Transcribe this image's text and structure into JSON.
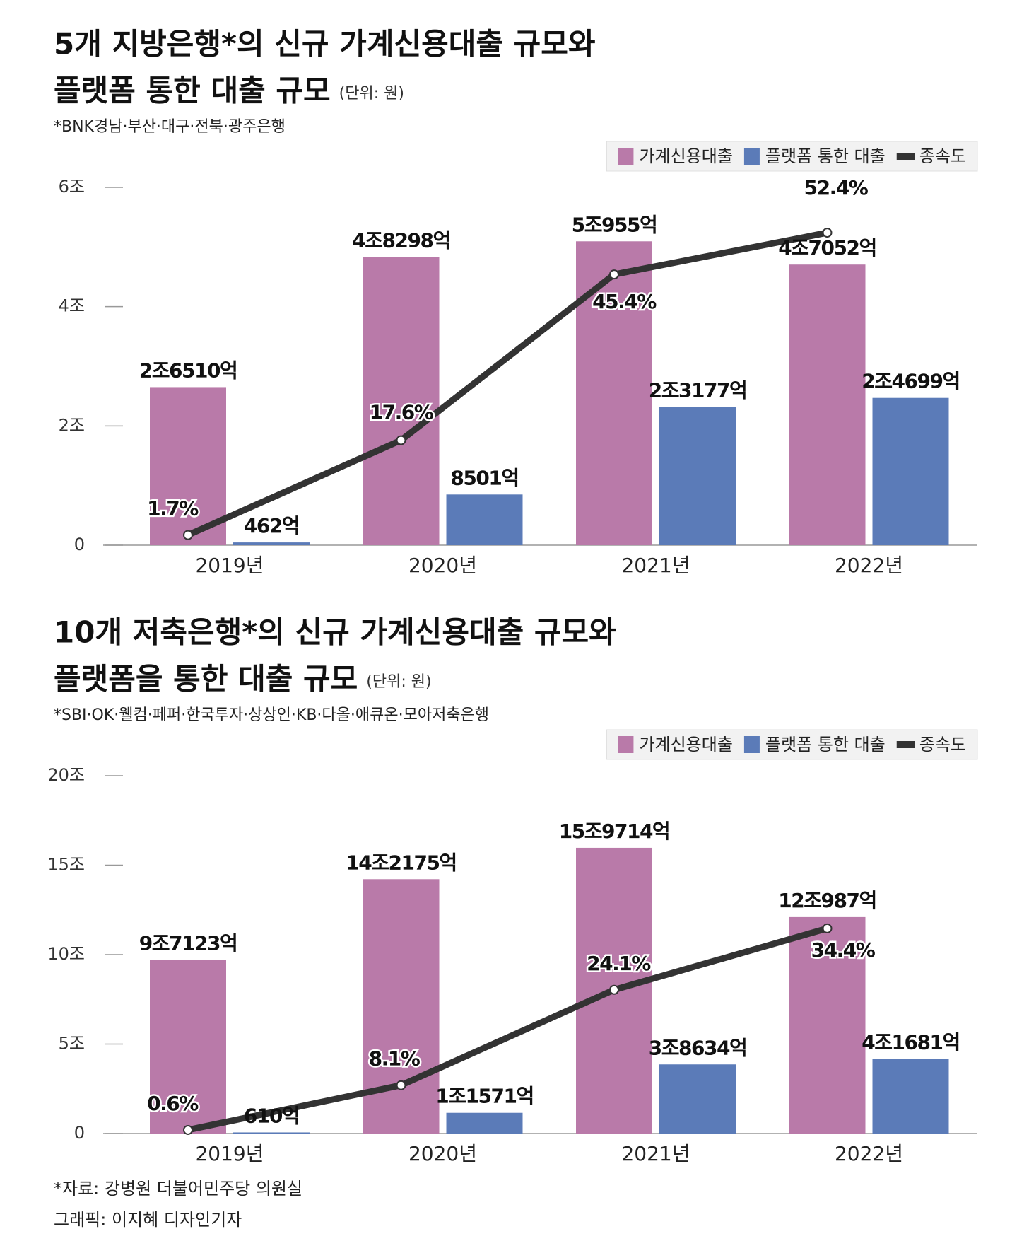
{
  "chart_data": [
    {
      "type": "bar",
      "title": [
        "5개 지방은행*의 신규 가계신용대출 규모와",
        "플랫폼 통한 대출 규모"
      ],
      "unit": "(단위: 원)",
      "note": "*BNK경남·부산·대구·전북·광주은행",
      "categories": [
        "2019년",
        "2020년",
        "2021년",
        "2022년"
      ],
      "ylim": [
        0,
        6
      ],
      "yticks": [
        0,
        {
          "value": 2,
          "label": "2조"
        },
        {
          "value": 4,
          "label": "4조"
        },
        {
          "value": 6,
          "label": "6조"
        }
      ],
      "y2lim": [
        0,
        60
      ],
      "legend": "top-right",
      "series": [
        {
          "name": "가계신용대출",
          "type": "bar",
          "color": "#b97aa9",
          "values": [
            2.651,
            4.8298,
            5.0955,
            4.7052
          ],
          "value_labels": [
            "2조6510억",
            "4조8298억",
            "5조955억",
            "4조7052억"
          ]
        },
        {
          "name": "플랫폼 통한 대출",
          "type": "bar",
          "color": "#5b7bb8",
          "values": [
            0.0462,
            0.8501,
            2.3177,
            2.4699
          ],
          "value_labels": [
            "462억",
            "8501억",
            "2조3177억",
            "2조4699억"
          ]
        },
        {
          "name": "종속도",
          "type": "line",
          "axis": "y2",
          "color": "#333333",
          "values": [
            1.7,
            17.6,
            45.4,
            52.4
          ],
          "value_labels": [
            "1.7%",
            "17.6%",
            "45.4%",
            "52.4%"
          ]
        }
      ]
    },
    {
      "type": "bar",
      "title": [
        "10개 저축은행*의 신규 가계신용대출 규모와",
        "플랫폼을 통한 대출 규모"
      ],
      "unit": "(단위: 원)",
      "note": "*SBI·OK·웰컴·페퍼·한국투자·상상인·KB·다올·애큐온·모아저축은행",
      "categories": [
        "2019년",
        "2020년",
        "2021년",
        "2022년"
      ],
      "ylim": [
        0,
        20
      ],
      "yticks": [
        0,
        {
          "value": 5,
          "label": "5조"
        },
        {
          "value": 10,
          "label": "10조"
        },
        {
          "value": 15,
          "label": "15조"
        },
        {
          "value": 20,
          "label": "20조"
        }
      ],
      "y2lim": [
        0,
        60
      ],
      "legend": "top-right",
      "series": [
        {
          "name": "가계신용대출",
          "type": "bar",
          "color": "#b97aa9",
          "values": [
            9.7123,
            14.2175,
            15.9714,
            12.0987
          ],
          "value_labels": [
            "9조7123억",
            "14조2175억",
            "15조9714억",
            "12조987억"
          ]
        },
        {
          "name": "플랫폼 통한 대출",
          "type": "bar",
          "color": "#5b7bb8",
          "values": [
            0.061,
            1.1571,
            3.8634,
            4.1681
          ],
          "value_labels": [
            "610억",
            "1조1571억",
            "3조8634억",
            "4조1681억"
          ]
        },
        {
          "name": "종속도",
          "type": "line",
          "axis": "y2",
          "color": "#333333",
          "values": [
            0.6,
            8.1,
            24.1,
            34.4
          ],
          "value_labels": [
            "0.6%",
            "8.1%",
            "24.1%",
            "34.4%"
          ]
        }
      ]
    }
  ],
  "source": "*자료: 강병원 더불어민주당 의원실",
  "credit": "그래픽: 이지혜 디자인기자"
}
